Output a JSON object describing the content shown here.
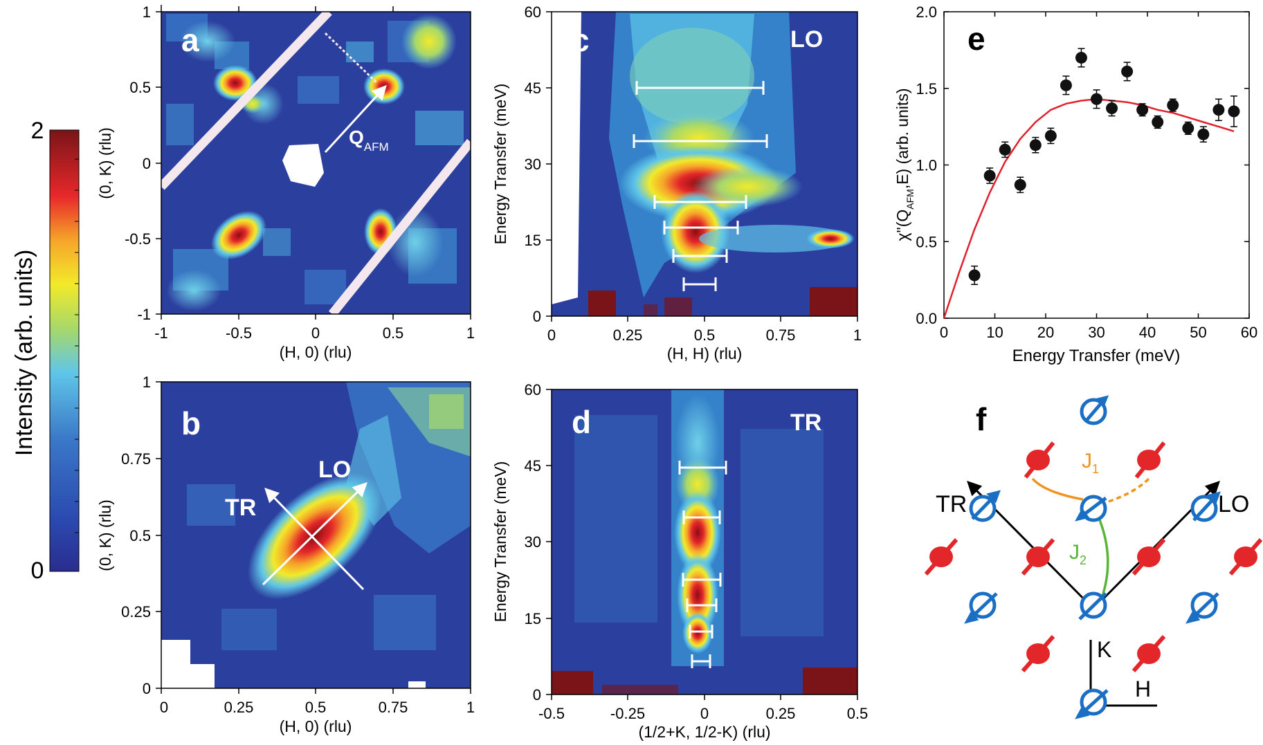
{
  "colorbar": {
    "label": "Intensity (arb. units)",
    "max": "2",
    "min": "0"
  },
  "panels": {
    "a": {
      "letter": "a",
      "xlabel": "(H, 0) (rlu)",
      "ylabel": "(0, K) (rlu)",
      "xticks": [
        "-1",
        "-0.5",
        "0",
        "0.5",
        "1"
      ],
      "yticks": [
        "1",
        "0.5",
        "0",
        "-0.5",
        "-1"
      ],
      "annotation_main": "Q",
      "annotation_sub": "AFM"
    },
    "b": {
      "letter": "b",
      "xlabel": "(H, 0) (rlu)",
      "ylabel": "(0, K) (rlu)",
      "xticks": [
        "0",
        "0.25",
        "0.5",
        "0.75",
        "1"
      ],
      "yticks": [
        "1",
        "0.75",
        "0.5",
        "0.25",
        "0"
      ],
      "arrow_tr": "TR",
      "arrow_lo": "LO"
    },
    "c": {
      "letter": "c",
      "tag": "LO",
      "xlabel": "(H, H) (rlu)",
      "ylabel": "Energy Transfer (meV)",
      "xticks": [
        "0",
        "0.25",
        "0.5",
        "0.75",
        "1"
      ],
      "yticks": [
        "60",
        "45",
        "30",
        "15",
        "0"
      ]
    },
    "d": {
      "letter": "d",
      "tag": "TR",
      "xlabel": "(1/2+K, 1/2-K) (rlu)",
      "ylabel": "Energy Transfer (meV)",
      "xticks": [
        "-0.5",
        "-0.25",
        "0",
        "0.25",
        "0.5"
      ],
      "yticks": [
        "60",
        "45",
        "30",
        "15",
        "0"
      ]
    },
    "e": {
      "letter": "e"
    },
    "f": {
      "letter": "f",
      "tr": "TR",
      "lo": "LO",
      "j1": "J",
      "j1_sub": "1",
      "j2": "J",
      "j2_sub": "2",
      "k": "K",
      "h": "H"
    }
  },
  "chart_data": {
    "type": "scatter",
    "title": "e",
    "xlabel": "Energy Transfer (meV)",
    "ylabel_main": "χ\"(Q",
    "ylabel_sub": "AFM",
    "ylabel_end": ",E) (arb. units)",
    "xlim": [
      0,
      60
    ],
    "ylim": [
      0,
      2.0
    ],
    "xticks": [
      0,
      10,
      20,
      30,
      40,
      50,
      60
    ],
    "yticks": [
      0.0,
      0.5,
      1.0,
      1.5,
      2.0
    ],
    "ytick_labels": [
      "0.0",
      "0.5",
      "1.0",
      "1.5",
      "2.0"
    ],
    "series": [
      {
        "name": "data",
        "x": [
          6,
          9,
          12,
          15,
          18,
          21,
          24,
          27,
          30,
          33,
          36,
          39,
          42,
          45,
          48,
          51,
          54,
          57
        ],
        "y": [
          0.28,
          0.93,
          1.1,
          0.87,
          1.13,
          1.19,
          1.52,
          1.7,
          1.43,
          1.37,
          1.61,
          1.36,
          1.28,
          1.39,
          1.24,
          1.2,
          1.36,
          1.35
        ],
        "err": [
          0.06,
          0.05,
          0.05,
          0.05,
          0.05,
          0.05,
          0.06,
          0.06,
          0.06,
          0.05,
          0.06,
          0.04,
          0.04,
          0.04,
          0.04,
          0.05,
          0.07,
          0.1
        ],
        "color": "#000000"
      },
      {
        "name": "fit",
        "x": [
          0,
          3,
          6,
          9,
          12,
          15,
          18,
          21,
          24,
          27,
          30,
          33,
          36,
          39,
          42,
          45,
          48,
          51,
          54,
          57
        ],
        "y": [
          0,
          0.3,
          0.58,
          0.82,
          1.02,
          1.17,
          1.28,
          1.36,
          1.4,
          1.42,
          1.43,
          1.42,
          1.41,
          1.39,
          1.36,
          1.34,
          1.31,
          1.28,
          1.25,
          1.22
        ],
        "color": "#e0202a"
      }
    ]
  }
}
